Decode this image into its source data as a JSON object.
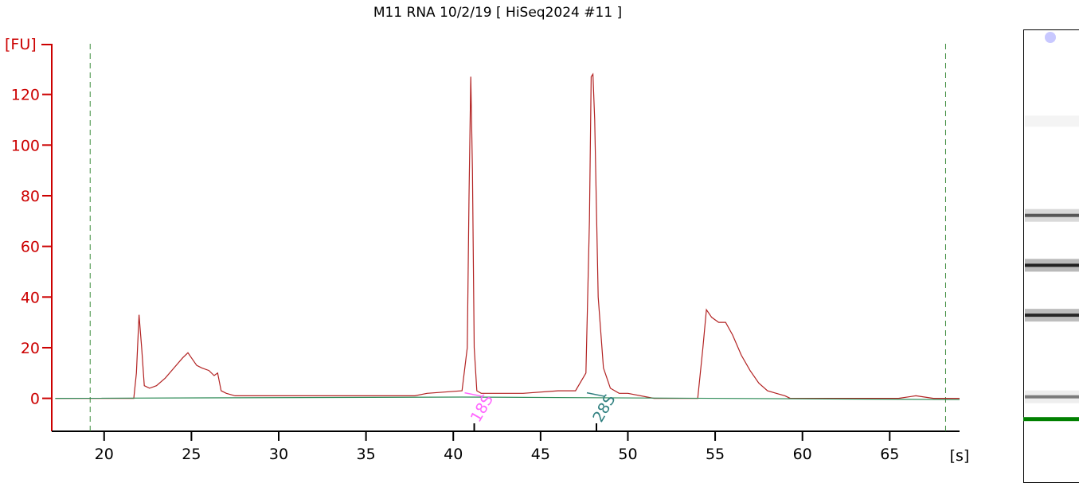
{
  "chart_data": {
    "type": "line",
    "title": "M11 RNA 10/2/19  [ HiSeq2024 #11 ]",
    "ylabel": "[FU]",
    "xlabel": "[s]",
    "xlim": [
      17,
      69
    ],
    "ylim": [
      -13,
      140
    ],
    "xticks": [
      20,
      25,
      30,
      35,
      40,
      45,
      50,
      55,
      60,
      65
    ],
    "yticks": [
      0,
      20,
      40,
      60,
      80,
      100,
      120
    ],
    "dashed_markers_x": [
      19.2,
      68.2
    ],
    "peak_labels": [
      {
        "label": "18S",
        "x": 41.2,
        "color": "#ff66ff"
      },
      {
        "label": "28S",
        "x": 48.2,
        "color": "#2f7f7f"
      }
    ],
    "series": [
      {
        "color": "#b22222",
        "x": [
          17.2,
          18.5,
          19.5,
          21.7,
          21.85,
          22.0,
          22.15,
          22.3,
          22.6,
          23.0,
          23.5,
          24.0,
          24.5,
          24.8,
          25.0,
          25.3,
          25.6,
          26.0,
          26.3,
          26.5,
          26.7,
          27.0,
          27.5,
          28.0,
          30.0,
          35.0,
          37.8,
          38.5,
          40.5,
          40.8,
          40.9,
          41.0,
          41.1,
          41.2,
          41.35,
          41.6,
          42.0,
          44.0,
          46.0,
          47.0,
          47.6,
          47.8,
          47.9,
          48.0,
          48.1,
          48.3,
          48.6,
          49.0,
          49.5,
          50.0,
          51.5,
          54.0,
          54.3,
          54.5,
          54.8,
          55.2,
          55.6,
          56.0,
          56.5,
          57.0,
          57.5,
          58.0,
          58.5,
          59.0,
          59.3,
          65.5,
          66.5,
          67.5,
          69.0
        ],
        "values": [
          0,
          0,
          0,
          0,
          10,
          33,
          20,
          5,
          4,
          5,
          8,
          12,
          16,
          18,
          16,
          13,
          12,
          11,
          9,
          10,
          3,
          2,
          1,
          1,
          1,
          1,
          1,
          2,
          3,
          20,
          80,
          127,
          90,
          20,
          3,
          2,
          2,
          2,
          3,
          3,
          10,
          70,
          127,
          128,
          110,
          40,
          12,
          4,
          2,
          2,
          0,
          0,
          20,
          35,
          32,
          30,
          30,
          25,
          17,
          11,
          6,
          3,
          2,
          1,
          0,
          0,
          1,
          0,
          0
        ]
      },
      {
        "color": "#2e8b57",
        "x": [
          17.2,
          40.5,
          69.0
        ],
        "values": [
          0,
          0.5,
          -0.5
        ]
      }
    ]
  },
  "gel": {
    "bands": [
      {
        "position": 0.41,
        "intensity": 0.55
      },
      {
        "position": 0.52,
        "intensity": 1.0
      },
      {
        "position": 0.63,
        "intensity": 0.95
      },
      {
        "position": 0.81,
        "intensity": 0.25
      }
    ],
    "marker_color": "#008000",
    "well_color": "#c8c8ff"
  }
}
